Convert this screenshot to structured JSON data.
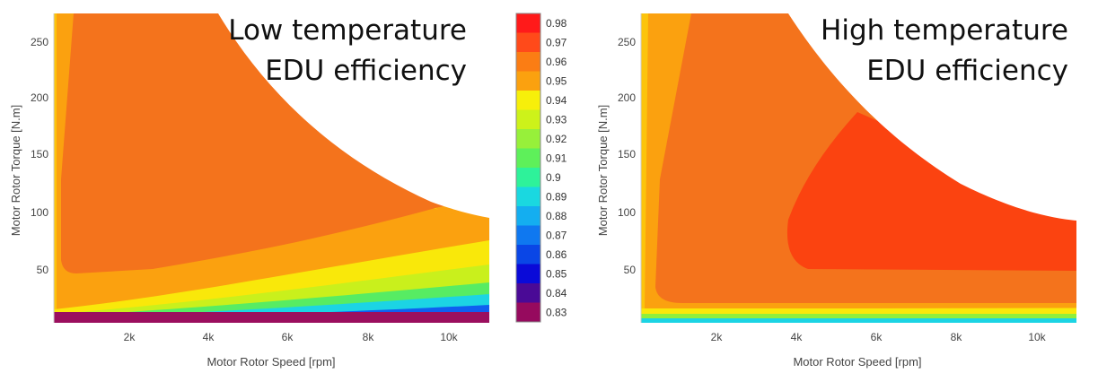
{
  "chart_data": [
    {
      "type": "heatmap",
      "overlay_title": [
        "Low temperature",
        "EDU efficiency"
      ],
      "xlabel": "Motor Rotor Speed [rpm]",
      "ylabel": "Motor Rotor Torque [N.m]",
      "xlim": [
        0,
        11000
      ],
      "ylim": [
        5,
        275
      ],
      "x_ticks": [
        2000,
        4000,
        6000,
        8000,
        10000
      ],
      "x_tick_labels": [
        "2k",
        "4k",
        "6k",
        "8k",
        "10k"
      ],
      "y_ticks": [
        50,
        100,
        150,
        200,
        250
      ],
      "y_tick_labels": [
        "50",
        "100",
        "150",
        "200",
        "250"
      ],
      "max_torque_envelope": [
        [
          500,
          275
        ],
        [
          1500,
          275
        ],
        [
          3000,
          220
        ],
        [
          5000,
          170
        ],
        [
          7000,
          135
        ],
        [
          9000,
          108
        ],
        [
          11000,
          93
        ]
      ],
      "regions": [
        {
          "level": 0.83,
          "description": "lowest efficiency band along bottom at low torque, high speed"
        },
        {
          "level": 0.95,
          "description": "outer band near zero speed and low torque"
        },
        {
          "level": 0.96,
          "description": "band between 0.97 core and low-torque gradient"
        },
        {
          "level": 0.97,
          "description": "main core region at low/medium speed and high torque"
        }
      ]
    },
    {
      "type": "heatmap",
      "overlay_title": [
        "High temperature",
        "EDU efficiency"
      ],
      "xlabel": "Motor Rotor Speed [rpm]",
      "ylabel": "Motor Rotor Torque [N.m]",
      "xlim": [
        0,
        11000
      ],
      "ylim": [
        5,
        275
      ],
      "x_ticks": [
        2000,
        4000,
        6000,
        8000,
        10000
      ],
      "x_tick_labels": [
        "2k",
        "4k",
        "6k",
        "8k",
        "10k"
      ],
      "y_ticks": [
        50,
        100,
        150,
        200,
        250
      ],
      "y_tick_labels": [
        "50",
        "100",
        "150",
        "200",
        "250"
      ],
      "max_torque_envelope": [
        [
          1000,
          275
        ],
        [
          2000,
          275
        ],
        [
          3500,
          235
        ],
        [
          5000,
          195
        ],
        [
          7000,
          145
        ],
        [
          9000,
          113
        ],
        [
          11000,
          93
        ]
      ],
      "regions": [
        {
          "level": 0.94,
          "description": "thin strips along low speed edge and low torque"
        },
        {
          "level": 0.96,
          "description": "outer band along low speed"
        },
        {
          "level": 0.97,
          "description": "main region covering most of the map"
        },
        {
          "level": 0.98,
          "description": "high efficiency island at medium/high speed, 50-180 N.m"
        }
      ]
    }
  ],
  "colorbar": {
    "levels": [
      0.98,
      0.97,
      0.96,
      0.95,
      0.94,
      0.93,
      0.92,
      0.91,
      0.9,
      0.89,
      0.88,
      0.87,
      0.86,
      0.85,
      0.84,
      0.83
    ],
    "labels": [
      "0.98",
      "0.97",
      "0.96",
      "0.95",
      "0.94",
      "0.93",
      "0.92",
      "0.91",
      "0.9",
      "0.89",
      "0.88",
      "0.87",
      "0.86",
      "0.85",
      "0.84",
      "0.83"
    ],
    "colors": [
      "#ff1a1a",
      "#ff4a1a",
      "#fb7d14",
      "#fba10f",
      "#f7ef0a",
      "#cdf21a",
      "#97f03a",
      "#5ef05a",
      "#2ef29a",
      "#1ad8e0",
      "#14aef0",
      "#0f78f0",
      "#0a46e6",
      "#0a0ad8",
      "#4a0a96",
      "#960a5e"
    ]
  },
  "colors": {
    "l97": "#f4731c",
    "l96": "#f99d14",
    "l95": "#fcc40c",
    "l98": "#fb4310",
    "bottom": "#9b0f5e",
    "background": "#ffffff"
  }
}
